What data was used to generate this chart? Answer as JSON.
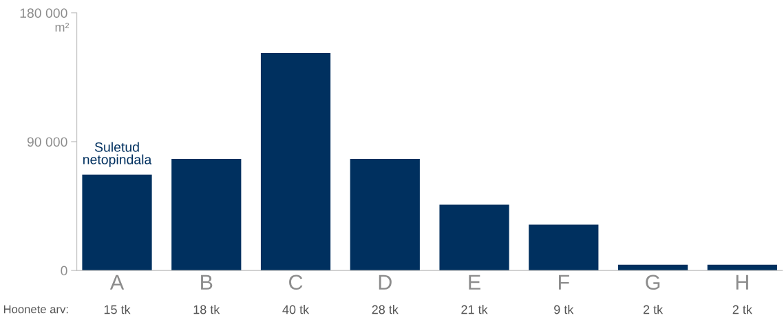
{
  "chart_data": {
    "type": "bar",
    "ylabel": "m²",
    "categories": [
      "A",
      "B",
      "C",
      "D",
      "E",
      "F",
      "G",
      "H"
    ],
    "values": [
      67000,
      78000,
      152000,
      78000,
      46000,
      32000,
      4000,
      4000
    ],
    "color": "#00305f",
    "ylim": [
      0,
      180000
    ],
    "yticks": [
      {
        "value": 0,
        "label": "0"
      },
      {
        "value": 90000,
        "label": "90 000"
      },
      {
        "value": 180000,
        "label": "180 000"
      }
    ],
    "grid": false,
    "annotations": [
      {
        "text": "Suletud\nnetopindala",
        "x": "A",
        "y": 67000
      },
      "Hoonete arv:",
      "15 tk",
      "18 tk",
      "40 tk",
      "28 tk",
      "21 tk",
      "9 tk",
      "2 tk",
      "2 tk"
    ]
  }
}
